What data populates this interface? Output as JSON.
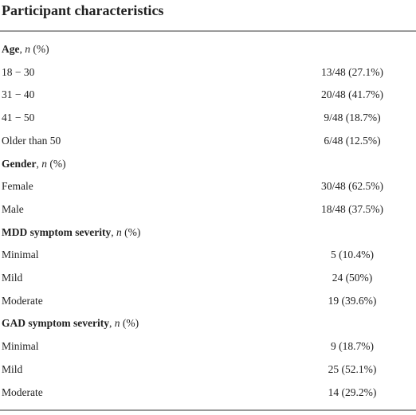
{
  "header": {
    "title": "Participant characteristics"
  },
  "table": {
    "sections": [
      {
        "label": [
          "Age",
          ", ",
          "n",
          " (%)"
        ],
        "rows": [
          [
            "18 − 30",
            "13/48 (27.1%)"
          ],
          [
            "31 − 40",
            "20/48 (41.7%)"
          ],
          [
            "41 − 50",
            "9/48 (18.7%)"
          ],
          [
            "Older than 50",
            "6/48 (12.5%)"
          ]
        ]
      },
      {
        "label": [
          "Gender",
          ", ",
          "n",
          " (%)"
        ],
        "rows": [
          [
            "Female",
            "30/48 (62.5%)"
          ],
          [
            "Male",
            "18/48 (37.5%)"
          ]
        ]
      },
      {
        "label": [
          "MDD symptom severity",
          ", ",
          "n",
          " (%)"
        ],
        "rows": [
          [
            "Minimal",
            "5 (10.4%)"
          ],
          [
            "Mild",
            "24 (50%)"
          ],
          [
            "Moderate",
            "19 (39.6%)"
          ]
        ]
      },
      {
        "label": [
          "GAD symptom severity",
          ", ",
          "n",
          " (%)"
        ],
        "rows": [
          [
            "Minimal",
            "9 (18.7%)"
          ],
          [
            "Mild",
            "25 (52.1%)"
          ],
          [
            "Moderate",
            "14 (29.2%)"
          ]
        ]
      }
    ]
  }
}
